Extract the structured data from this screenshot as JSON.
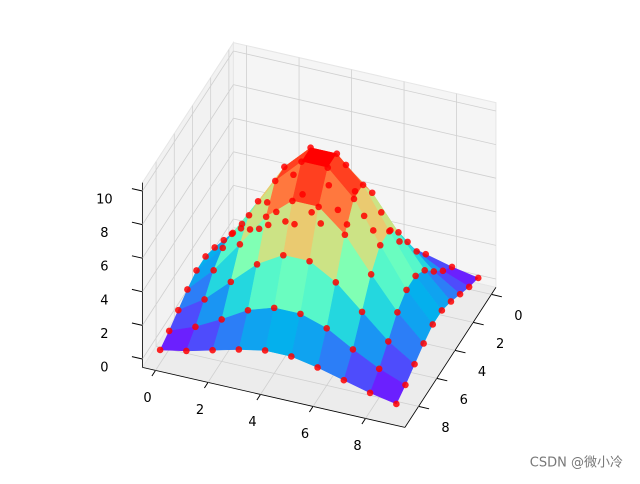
{
  "chart_data": {
    "type": "surface3d",
    "x": [
      0,
      1,
      2,
      3,
      4,
      5,
      6,
      7,
      8,
      9
    ],
    "y": [
      0,
      1,
      2,
      3,
      4,
      5,
      6,
      7,
      8,
      9
    ],
    "z": [
      [
        0.3,
        0.6,
        1.0,
        1.4,
        1.7,
        1.7,
        1.4,
        1.0,
        0.6,
        0.3
      ],
      [
        0.6,
        1.2,
        2.0,
        2.9,
        3.4,
        3.4,
        2.9,
        2.0,
        1.2,
        0.6
      ],
      [
        1.0,
        2.0,
        3.4,
        4.8,
        5.7,
        5.7,
        4.8,
        3.4,
        2.0,
        1.0
      ],
      [
        1.4,
        2.9,
        4.8,
        6.8,
        8.1,
        8.1,
        6.8,
        4.8,
        2.9,
        1.4
      ],
      [
        1.7,
        3.4,
        5.7,
        8.1,
        9.6,
        9.6,
        8.1,
        5.7,
        3.4,
        1.7
      ],
      [
        1.7,
        3.4,
        5.7,
        8.1,
        9.6,
        9.6,
        8.1,
        5.7,
        3.4,
        1.7
      ],
      [
        1.4,
        2.9,
        4.8,
        6.8,
        8.1,
        8.1,
        6.8,
        4.8,
        2.9,
        1.4
      ],
      [
        1.0,
        2.0,
        3.4,
        4.8,
        5.7,
        5.7,
        4.8,
        3.4,
        2.0,
        1.0
      ],
      [
        0.6,
        1.2,
        2.0,
        2.9,
        3.4,
        3.4,
        2.9,
        2.0,
        1.2,
        0.6
      ],
      [
        0.3,
        0.6,
        1.0,
        1.4,
        1.7,
        1.7,
        1.4,
        1.0,
        0.6,
        0.3
      ]
    ],
    "colormap": "rainbow",
    "marker_color": "#ff0000",
    "xlim": [
      -0.5,
      9.5
    ],
    "ylim": [
      -0.5,
      9.5
    ],
    "zlim": [
      -0.5,
      10.5
    ],
    "xticks": [
      0,
      2,
      4,
      6,
      8
    ],
    "yticks": [
      0,
      2,
      4,
      6,
      8
    ],
    "zticks": [
      0,
      2,
      4,
      6,
      8,
      10
    ],
    "grid": true,
    "watermark": "CSDN @微小冷"
  }
}
